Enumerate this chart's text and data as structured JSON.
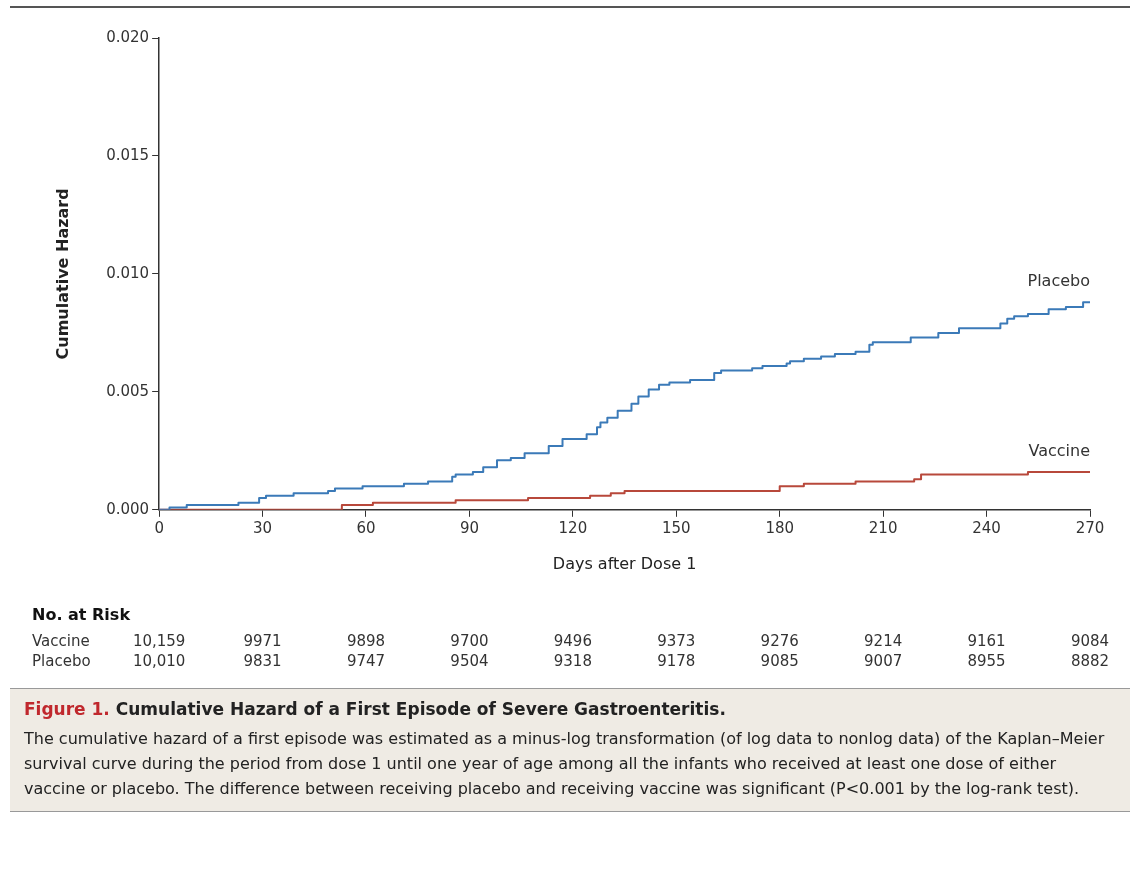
{
  "chart_data": {
    "type": "step",
    "title": "Figure 1. Cumulative Hazard of a First Episode of Severe Gastroenteritis.",
    "subtitle": "The cumulative hazard of a first episode was estimated as a minus-log transformation (of log data to nonlog data) of the Kaplan–Meier survival curve during the period from dose 1 until one year of age among all the infants who received at least one dose of either vaccine or placebo. The difference between receiving placebo and receiving vaccine was significant (P<0.001 by the log-rank test).",
    "xlabel": "Days after Dose 1",
    "ylabel": "Cumulative Hazard",
    "xlim": [
      0,
      270
    ],
    "xticks": [
      0,
      30,
      60,
      90,
      120,
      150,
      180,
      210,
      240,
      270
    ],
    "ylim": [
      0,
      0.02
    ],
    "yticks": [
      {
        "value": 0,
        "label": "0.000"
      },
      {
        "value": 0.005,
        "label": "0.005"
      },
      {
        "value": 0.01,
        "label": "0.010"
      },
      {
        "value": 0.015,
        "label": "0.015"
      },
      {
        "value": 0.02,
        "label": "0.020"
      }
    ],
    "grid": false,
    "legend": false,
    "marker": "none",
    "line_style": "solid",
    "annotations": [
      "No. at Risk",
      "Vaccine",
      "10,159",
      "9971",
      "9898",
      "9700",
      "9496",
      "9373",
      "9276",
      "9214",
      "9161",
      "9084",
      "Placebo",
      "10,010",
      "9831",
      "9747",
      "9504",
      "9318",
      "9178",
      "9085",
      "9007",
      "8955",
      "8882"
    ],
    "series": [
      {
        "name": "Placebo",
        "color": "#3b7ab8",
        "x": [
          0,
          3,
          8,
          23,
          29,
          31,
          39,
          49,
          51,
          59,
          71,
          78,
          85,
          86,
          91,
          94,
          98,
          102,
          106,
          113,
          117,
          124,
          127,
          128,
          130,
          133,
          137,
          139,
          142,
          145,
          148,
          154,
          161,
          163,
          172,
          175,
          182,
          183,
          187,
          192,
          196,
          202,
          206,
          207,
          218,
          226,
          232,
          244,
          246,
          248,
          252,
          258,
          263,
          268,
          270
        ],
        "values": [
          0,
          0.0001,
          0.0002,
          0.0003,
          0.0005,
          0.0006,
          0.0007,
          0.0008,
          0.0009,
          0.001,
          0.0011,
          0.0012,
          0.0014,
          0.0015,
          0.0016,
          0.0018,
          0.0021,
          0.0022,
          0.0024,
          0.0027,
          0.003,
          0.0032,
          0.0035,
          0.0037,
          0.0039,
          0.0042,
          0.0045,
          0.0048,
          0.0051,
          0.0053,
          0.0054,
          0.0055,
          0.0058,
          0.0059,
          0.006,
          0.0061,
          0.0062,
          0.0063,
          0.0064,
          0.0065,
          0.0066,
          0.0067,
          0.007,
          0.0071,
          0.0073,
          0.0075,
          0.0077,
          0.0079,
          0.0081,
          0.0082,
          0.0083,
          0.0085,
          0.0086,
          0.0088,
          0.0088
        ]
      },
      {
        "name": "Vaccine",
        "color": "#b8483b",
        "x": [
          0,
          53,
          62,
          86,
          107,
          125,
          131,
          135,
          180,
          187,
          202,
          219,
          221,
          252,
          270
        ],
        "values": [
          0,
          0.0002,
          0.0003,
          0.0004,
          0.0005,
          0.0006,
          0.0007,
          0.0008,
          0.001,
          0.0011,
          0.0012,
          0.0013,
          0.0015,
          0.0016,
          0.0016
        ]
      }
    ]
  }
}
